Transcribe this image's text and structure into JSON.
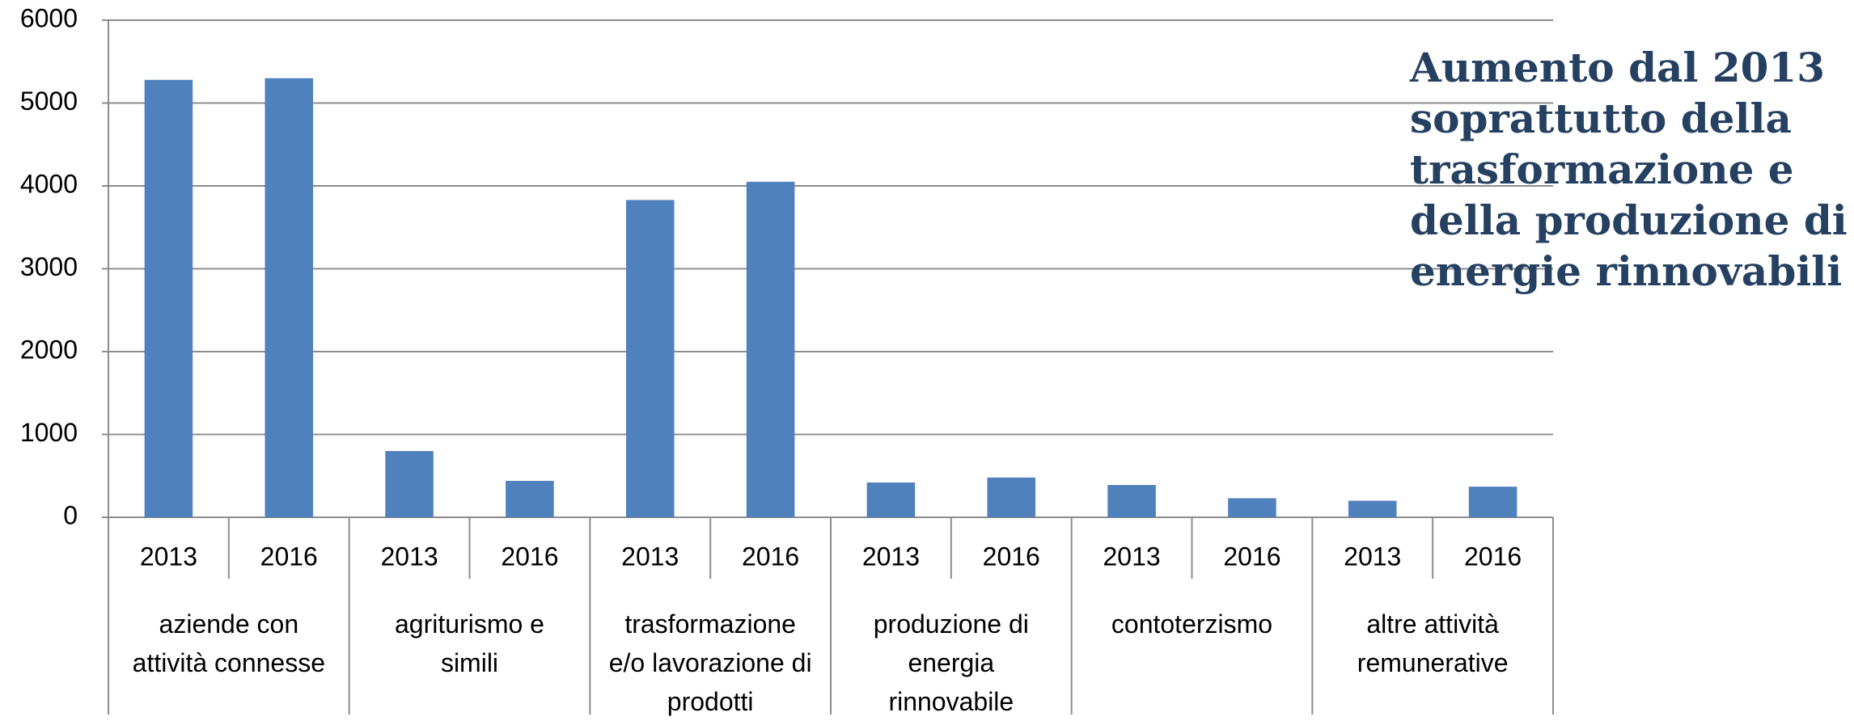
{
  "chart_data": {
    "type": "bar",
    "annotation": "Aumento dal 2013\nsoprattutto della\ntrasformazione e\ndella produzione di\nenergie rinnovabili",
    "categories": [
      "2013",
      "2016",
      "2013",
      "2016",
      "2013",
      "2016",
      "2013",
      "2016",
      "2013",
      "2016",
      "2013",
      "2016"
    ],
    "groups": [
      "aziende con\nattività connesse",
      "agriturismo e\nsimili",
      "trasformazione\ne/o lavorazione di\nprodotti",
      "produzione di\nenergia\nrinnovabile",
      "contoterzismo",
      "altre attività\nremunerative"
    ],
    "values": [
      5280,
      5300,
      800,
      440,
      3830,
      4050,
      420,
      480,
      390,
      230,
      200,
      370
    ],
    "color": "#4f81bd",
    "ylim": [
      0,
      6000
    ],
    "yticks": [
      0,
      1000,
      2000,
      3000,
      4000,
      5000,
      6000
    ],
    "grid": true
  }
}
